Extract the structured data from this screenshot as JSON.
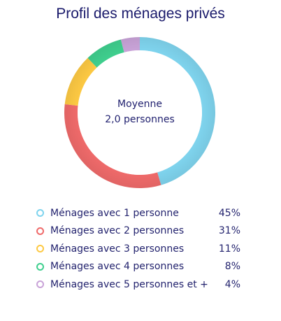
{
  "title": "Profil des ménages privés",
  "center": {
    "label": "Moyenne",
    "value": "2,0 personnes"
  },
  "chart_data": {
    "type": "pie",
    "donut": true,
    "title": "Profil des ménages privés",
    "unit": "%",
    "legend_position": "bottom",
    "series": [
      {
        "name": "Ménages avec 1 personne",
        "value": 45,
        "display": "45%",
        "color": "#7fd4ee"
      },
      {
        "name": "Ménages avec 2 personnes",
        "value": 31,
        "display": "31%",
        "color": "#ef6a6a"
      },
      {
        "name": "Ménages avec 3 personnes",
        "value": 11,
        "display": "11%",
        "color": "#fdc943"
      },
      {
        "name": "Ménages avec 4 personnes",
        "value": 8,
        "display": "8%",
        "color": "#3fcf8e"
      },
      {
        "name": "Ménages avec 5 personnes et +",
        "value": 4,
        "display": "4%",
        "color": "#c9a3d8"
      }
    ]
  }
}
